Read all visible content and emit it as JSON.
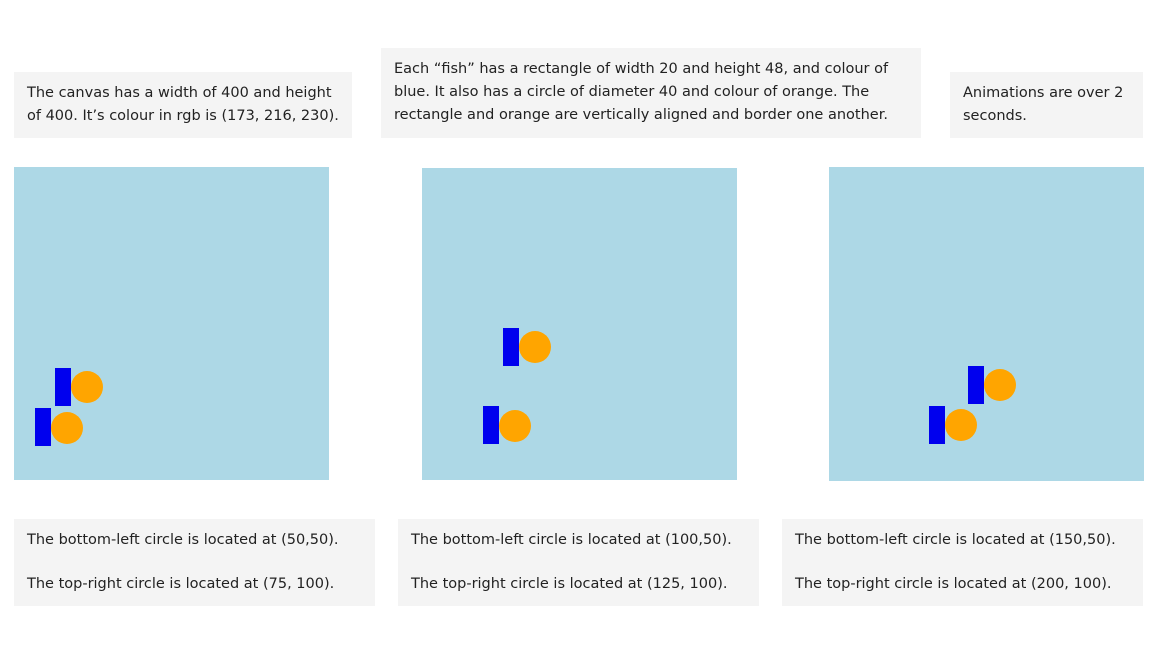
{
  "top_notes": {
    "canvas_info": "The canvas has a width of 400 and height of 400. It’s colour in rgb is (173, 216, 230).",
    "fish_info": "Each “fish” has a rectangle of width 20 and height 48, and colour of blue. It also has a circle of diameter 40 and colour of orange. The rectangle and orange are vertically aligned and border one another.",
    "animation_info": "Animations are over 2 seconds."
  },
  "colors": {
    "canvas": "#add8e6",
    "fish_rect": "#0000ee",
    "fish_circle": "#ffa500"
  },
  "frames": [
    {
      "bottom_left_text": "The bottom-left circle is located at (50,50).",
      "top_right_text": "The top-right circle is located at (75, 100)."
    },
    {
      "bottom_left_text": "The bottom-left circle is located at (100,50).",
      "top_right_text": "The top-right circle is located at (125, 100)."
    },
    {
      "bottom_left_text": "The bottom-left circle is located at (150,50).",
      "top_right_text": "The top-right circle is located at (200, 100)."
    }
  ]
}
